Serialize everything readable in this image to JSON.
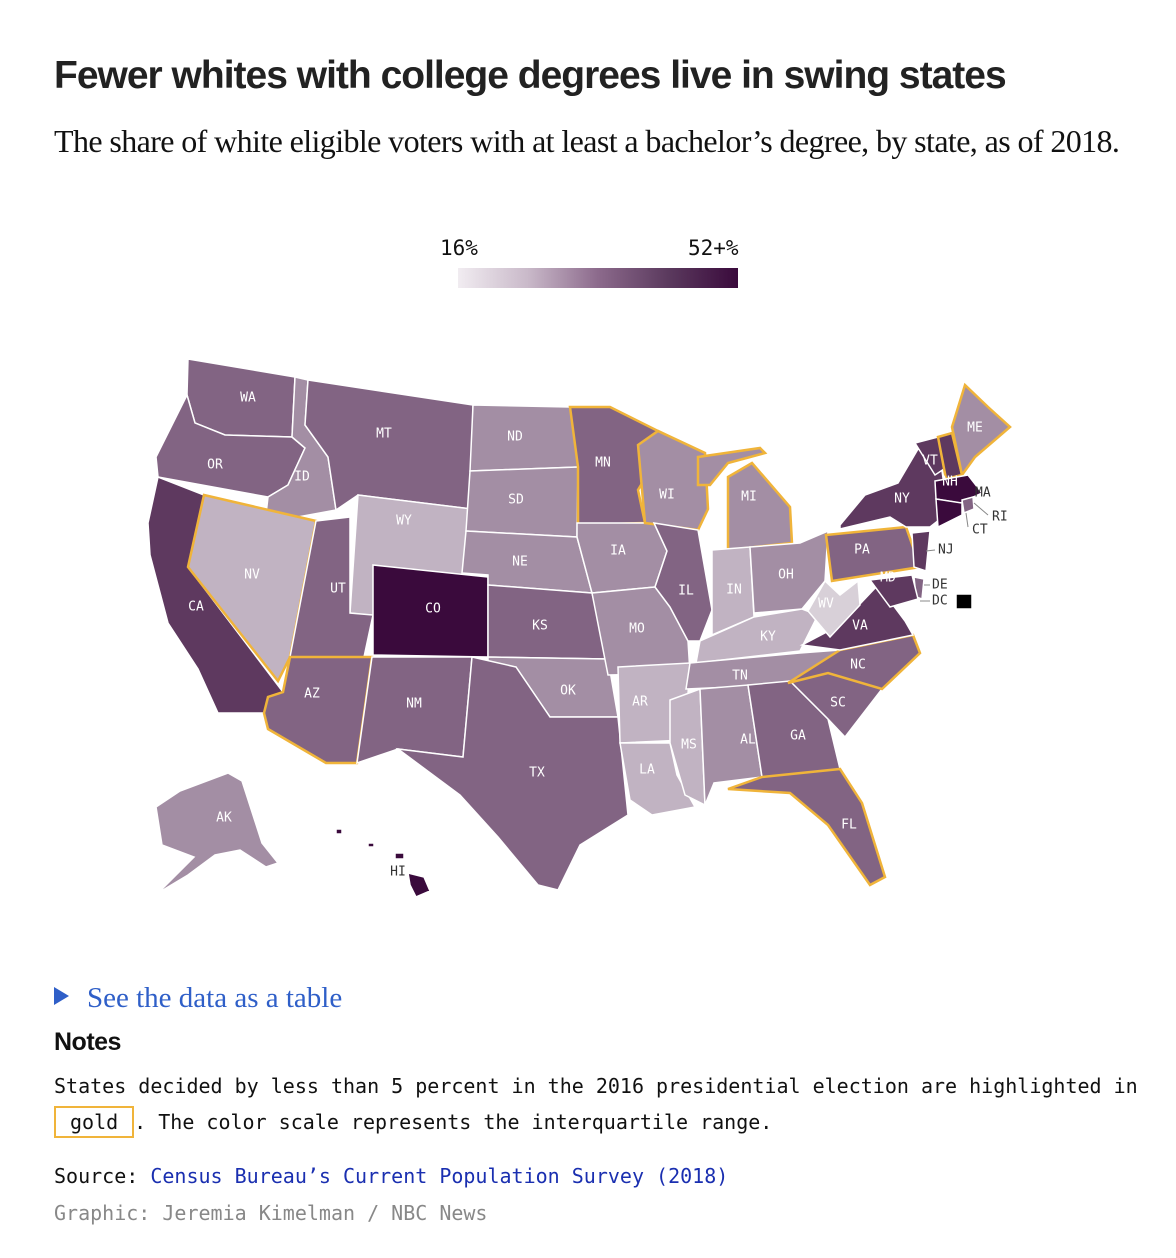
{
  "header": {
    "title": "Fewer whites with college degrees live in swing states",
    "subtitle": "The share of white eligible voters with at least a bachelor’s degree, by state, as of 2018."
  },
  "legend": {
    "min_label": "16%",
    "max_label": "52+%",
    "colors": [
      "#f1ecf1",
      "#c9b9c9",
      "#8c6a8c",
      "#5b3a5e",
      "#3a0a3c"
    ]
  },
  "map": {
    "highlight_color": "#f0b43a",
    "states": [
      {
        "abbr": "WA",
        "level": 3,
        "swing": false
      },
      {
        "abbr": "OR",
        "level": 3,
        "swing": false
      },
      {
        "abbr": "CA",
        "level": 4,
        "swing": false
      },
      {
        "abbr": "ID",
        "level": 2,
        "swing": false
      },
      {
        "abbr": "NV",
        "level": 1,
        "swing": true
      },
      {
        "abbr": "MT",
        "level": 3,
        "swing": false
      },
      {
        "abbr": "WY",
        "level": 1,
        "swing": false
      },
      {
        "abbr": "UT",
        "level": 3,
        "swing": false
      },
      {
        "abbr": "AZ",
        "level": 3,
        "swing": true
      },
      {
        "abbr": "CO",
        "level": 5,
        "swing": false
      },
      {
        "abbr": "NM",
        "level": 3,
        "swing": false
      },
      {
        "abbr": "ND",
        "level": 2,
        "swing": false
      },
      {
        "abbr": "SD",
        "level": 2,
        "swing": false
      },
      {
        "abbr": "NE",
        "level": 2,
        "swing": false
      },
      {
        "abbr": "KS",
        "level": 3,
        "swing": false
      },
      {
        "abbr": "OK",
        "level": 2,
        "swing": false
      },
      {
        "abbr": "TX",
        "level": 3,
        "swing": false
      },
      {
        "abbr": "MN",
        "level": 3,
        "swing": true
      },
      {
        "abbr": "IA",
        "level": 2,
        "swing": false
      },
      {
        "abbr": "MO",
        "level": 2,
        "swing": false
      },
      {
        "abbr": "AR",
        "level": 1,
        "swing": false
      },
      {
        "abbr": "LA",
        "level": 1,
        "swing": false
      },
      {
        "abbr": "WI",
        "level": 2,
        "swing": true
      },
      {
        "abbr": "IL",
        "level": 3,
        "swing": false
      },
      {
        "abbr": "MI",
        "level": 2,
        "swing": true
      },
      {
        "abbr": "IN",
        "level": 1,
        "swing": false
      },
      {
        "abbr": "OH",
        "level": 2,
        "swing": false
      },
      {
        "abbr": "KY",
        "level": 1,
        "swing": false
      },
      {
        "abbr": "TN",
        "level": 2,
        "swing": false
      },
      {
        "abbr": "MS",
        "level": 1,
        "swing": false
      },
      {
        "abbr": "AL",
        "level": 2,
        "swing": false
      },
      {
        "abbr": "GA",
        "level": 3,
        "swing": false
      },
      {
        "abbr": "FL",
        "level": 3,
        "swing": true
      },
      {
        "abbr": "SC",
        "level": 3,
        "swing": false
      },
      {
        "abbr": "NC",
        "level": 3,
        "swing": true
      },
      {
        "abbr": "VA",
        "level": 4,
        "swing": false
      },
      {
        "abbr": "WV",
        "level": 0,
        "swing": false
      },
      {
        "abbr": "PA",
        "level": 3,
        "swing": true
      },
      {
        "abbr": "NY",
        "level": 4,
        "swing": false
      },
      {
        "abbr": "VT",
        "level": 4,
        "swing": false
      },
      {
        "abbr": "NH",
        "level": 4,
        "swing": true
      },
      {
        "abbr": "ME",
        "level": 2,
        "swing": true
      },
      {
        "abbr": "MA",
        "level": 5,
        "swing": false
      },
      {
        "abbr": "RI",
        "level": 3,
        "swing": false
      },
      {
        "abbr": "CT",
        "level": 5,
        "swing": false
      },
      {
        "abbr": "NJ",
        "level": 4,
        "swing": false
      },
      {
        "abbr": "DE",
        "level": 3,
        "swing": false
      },
      {
        "abbr": "MD",
        "level": 4,
        "swing": false
      },
      {
        "abbr": "DC",
        "level": 6,
        "swing": false
      },
      {
        "abbr": "AK",
        "level": 2,
        "swing": false
      },
      {
        "abbr": "HI",
        "level": 5,
        "swing": false
      }
    ]
  },
  "table_toggle": {
    "label": "See the data as a table",
    "icon": "triangle-right-icon"
  },
  "notes": {
    "heading": "Notes",
    "text_before": "States decided by less than 5 percent in the 2016 presidential election are highlighted in",
    "highlight_word": "gold",
    "text_after": ". The color scale represents the interquartile range."
  },
  "source": {
    "prefix": "Source: ",
    "link_text": "Census Bureau’s Current Population Survey (2018)"
  },
  "credit": "Graphic: Jeremia Kimelman / NBC News"
}
